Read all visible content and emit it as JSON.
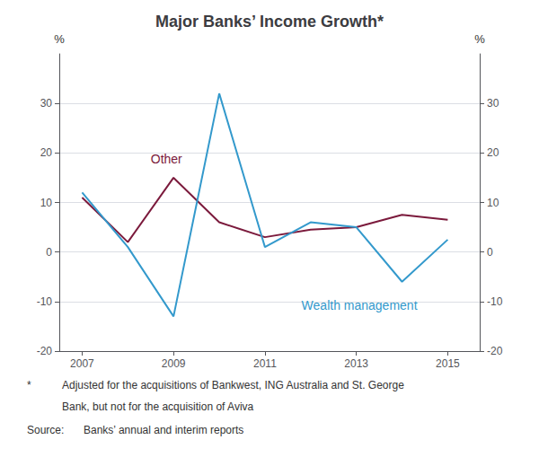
{
  "chart_data": {
    "type": "line",
    "title": "Major Banks’ Income Growth*",
    "x": [
      2007,
      2008,
      2009,
      2010,
      2011,
      2012,
      2013,
      2014,
      2015
    ],
    "series": [
      {
        "name": "Other",
        "color": "#7B1A3C",
        "values": [
          11,
          2,
          15,
          6,
          3,
          4.5,
          5,
          7.5,
          6.5
        ]
      },
      {
        "name": "Wealth management",
        "color": "#3399CC",
        "values": [
          12,
          1,
          -13,
          32,
          1,
          6,
          5,
          -6,
          2.5
        ]
      }
    ],
    "xlim": [
      2006.5,
      2015.7
    ],
    "xticks": [
      2007,
      2009,
      2011,
      2013,
      2015
    ],
    "ylim": [
      -20,
      40
    ],
    "yticks": [
      -20,
      -10,
      0,
      10,
      20,
      30
    ],
    "y2lim": [
      -20,
      40
    ],
    "y2ticks": [
      -20,
      -10,
      0,
      10,
      20,
      30
    ],
    "ylabel": "%",
    "y2label": "%",
    "grid": true,
    "annotations": [
      {
        "text": "Other",
        "x": 2008.5,
        "y": 17.5,
        "series": "Other",
        "anchor": "bottom"
      },
      {
        "text": "Wealth management",
        "x": 2011.8,
        "y": -9.5,
        "series": "Wealth management",
        "anchor": "top"
      }
    ],
    "footnote_mark": "*",
    "footnotes": [
      "Adjusted for the acquisitions of Bankwest, ING Australia and St. George",
      "Bank, but not for the acquisition of Aviva"
    ],
    "source_label": "Source:",
    "source": "Banks’ annual and interim reports"
  }
}
